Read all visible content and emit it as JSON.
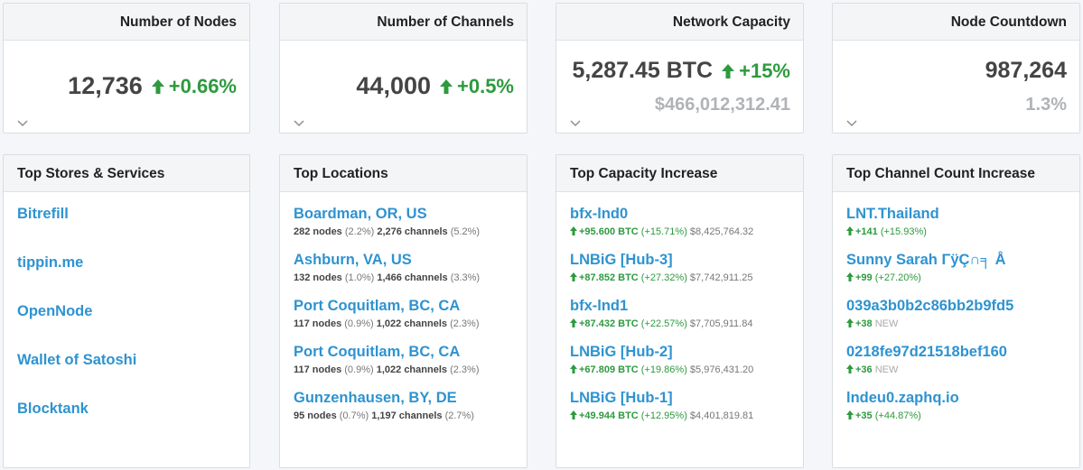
{
  "stats": [
    {
      "title": "Number of Nodes",
      "value": "12,736",
      "change": "+0.66%",
      "sub": ""
    },
    {
      "title": "Number of Channels",
      "value": "44,000",
      "change": "+0.5%",
      "sub": ""
    },
    {
      "title": "Network Capacity",
      "value": "5,287.45 BTC",
      "change": "+15%",
      "sub": "$466,012,312.41"
    },
    {
      "title": "Node Countdown",
      "value": "987,264",
      "change": "",
      "sub": "1.3%"
    }
  ],
  "stores": {
    "title": "Top Stores & Services",
    "items": [
      "Bitrefill",
      "tippin.me",
      "OpenNode",
      "Wallet of Satoshi",
      "Blocktank"
    ]
  },
  "locations": {
    "title": "Top Locations",
    "items": [
      {
        "name": "Boardman, OR, US",
        "nodes": "282 nodes",
        "nodes_pct": "(2.2%)",
        "channels": "2,276 channels",
        "channels_pct": "(5.2%)"
      },
      {
        "name": "Ashburn, VA, US",
        "nodes": "132 nodes",
        "nodes_pct": "(1.0%)",
        "channels": "1,466 channels",
        "channels_pct": "(3.3%)"
      },
      {
        "name": "Port Coquitlam, BC, CA",
        "nodes": "117 nodes",
        "nodes_pct": "(0.9%)",
        "channels": "1,022 channels",
        "channels_pct": "(2.3%)"
      },
      {
        "name": "Port Coquitlam, BC, CA",
        "nodes": "117 nodes",
        "nodes_pct": "(0.9%)",
        "channels": "1,022 channels",
        "channels_pct": "(2.3%)"
      },
      {
        "name": "Gunzenhausen, BY, DE",
        "nodes": "95 nodes",
        "nodes_pct": "(0.7%)",
        "channels": "1,197 channels",
        "channels_pct": "(2.7%)"
      }
    ]
  },
  "capacity": {
    "title": "Top Capacity Increase",
    "items": [
      {
        "name": "bfx-lnd0",
        "delta": "+95.600 BTC",
        "pct": "(+15.71%)",
        "usd": "$8,425,764.32"
      },
      {
        "name": "LNBiG [Hub-3]",
        "delta": "+87.852 BTC",
        "pct": "(+27.32%)",
        "usd": "$7,742,911.25"
      },
      {
        "name": "bfx-lnd1",
        "delta": "+87.432 BTC",
        "pct": "(+22.57%)",
        "usd": "$7,705,911.84"
      },
      {
        "name": "LNBiG [Hub-2]",
        "delta": "+67.809 BTC",
        "pct": "(+19.86%)",
        "usd": "$5,976,431.20"
      },
      {
        "name": "LNBiG [Hub-1]",
        "delta": "+49.944 BTC",
        "pct": "(+12.95%)",
        "usd": "$4,401,819.81"
      }
    ]
  },
  "channels": {
    "title": "Top Channel Count Increase",
    "items": [
      {
        "name": "LNT.Thailand",
        "delta": "+141",
        "note": "(+15.93%)",
        "is_new": false
      },
      {
        "name": "Sunny Sarah ΓÿÇ∩╕ Å",
        "delta": "+99",
        "note": "(+27.20%)",
        "is_new": false
      },
      {
        "name": "039a3b0b2c86bb2b9fd5",
        "delta": "+38",
        "note": "NEW",
        "is_new": true
      },
      {
        "name": "0218fe97d21518bef160",
        "delta": "+36",
        "note": "NEW",
        "is_new": true
      },
      {
        "name": "lndeu0.zaphq.io",
        "delta": "+35",
        "note": "(+44.87%)",
        "is_new": false
      }
    ]
  },
  "colors": {
    "link": "#2e93d1",
    "positive": "#2d9a3e",
    "muted": "#b0b3b7"
  }
}
